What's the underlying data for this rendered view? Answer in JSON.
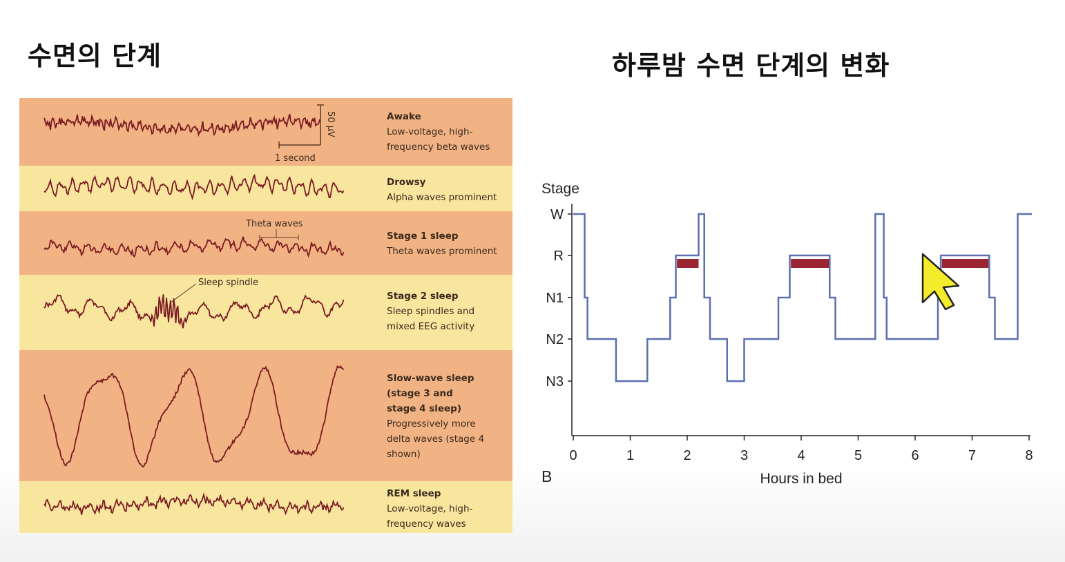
{
  "left_title": "수면의 단계",
  "right_title": "하루밤 수면 단계의 변화",
  "eeg": {
    "scale_amplitude": "50 μV",
    "scale_time": "1 second",
    "theta_annotation": "Theta waves",
    "spindle_annotation": "Sleep spindle",
    "stages": [
      {
        "name": "Awake",
        "desc": "Low-voltage, high-\nfrequency beta waves"
      },
      {
        "name": "Drowsy",
        "desc": "Alpha waves prominent"
      },
      {
        "name": "Stage 1 sleep",
        "desc": "Theta waves prominent"
      },
      {
        "name": "Stage 2 sleep",
        "desc": "Sleep spindles and\nmixed EEG activity"
      },
      {
        "name": "Slow-wave sleep\n(stage 3 and\nstage 4 sleep)",
        "desc": "Progressively more\ndelta waves (stage 4\nshown)"
      },
      {
        "name": "REM sleep",
        "desc": "Low-voltage, high-\nfrequency waves"
      }
    ],
    "colors": {
      "orange_band": "#f2b384",
      "yellow_band": "#f8e59e",
      "trace": "#7a1a22"
    }
  },
  "hypnogram": {
    "y_title": "Stage",
    "x_title": "Hours in bed",
    "panel_letter": "B",
    "y_ticks": [
      "W",
      "R",
      "N1",
      "N2",
      "N3"
    ],
    "x_ticks": [
      "0",
      "1",
      "2",
      "3",
      "4",
      "5",
      "6",
      "7",
      "8"
    ],
    "line_color": "#5b6fb0",
    "rem_color": "#9c2533"
  }
}
